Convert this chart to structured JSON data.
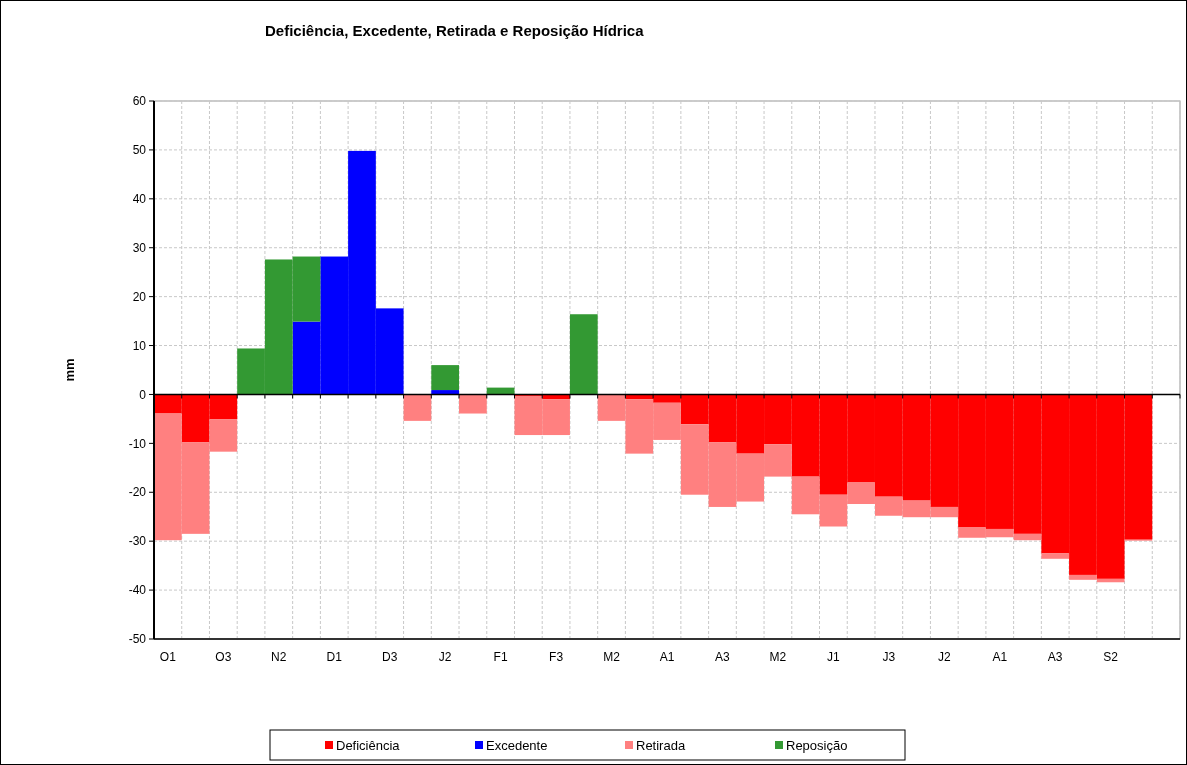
{
  "chart_data": {
    "type": "bar",
    "title": "Deficiência, Excedente, Retirada e Reposição Hídrica",
    "ylabel": "mm",
    "categories": [
      "O1",
      null,
      "O3",
      null,
      "N2",
      null,
      "D1",
      null,
      "D3",
      null,
      "J2",
      null,
      "F1",
      null,
      "F3",
      null,
      "M2",
      null,
      "A1",
      null,
      "A3",
      null,
      "M2",
      null,
      "J1",
      null,
      "J3",
      null,
      "J2",
      null,
      "A1",
      null,
      "A3",
      null,
      "S2",
      null,
      null
    ],
    "stacked": true,
    "series": [
      {
        "name": "Deficiência",
        "color": "#ff0000",
        "values": [
          -3.9,
          -9.8,
          -5.1,
          null,
          null,
          null,
          null,
          null,
          null,
          null,
          null,
          null,
          null,
          -0.3,
          -1.0,
          null,
          null,
          -1.0,
          -1.7,
          -6.1,
          -9.8,
          -12.1,
          -10.2,
          -16.8,
          -20.5,
          -18.0,
          -20.9,
          -21.7,
          -23.0,
          -27.2,
          -27.5,
          -28.5,
          -32.5,
          -36.9,
          -37.7,
          -29.7,
          null
        ]
      },
      {
        "name": "Excedente",
        "color": "#0000ff",
        "values": [
          null,
          null,
          null,
          null,
          null,
          14.9,
          28.2,
          49.8,
          17.6,
          null,
          0.9,
          null,
          null,
          null,
          null,
          null,
          null,
          null,
          null,
          null,
          null,
          null,
          null,
          null,
          null,
          null,
          null,
          null,
          null,
          null,
          null,
          null,
          null,
          null,
          null,
          null,
          null
        ]
      },
      {
        "name": "Retirada",
        "color": "#ff8080",
        "values": [
          -25.9,
          -18.7,
          -6.6,
          null,
          null,
          null,
          null,
          null,
          null,
          -5.4,
          null,
          -3.9,
          null,
          -8.0,
          -7.3,
          null,
          -5.4,
          -11.1,
          -7.6,
          -14.4,
          -13.2,
          -9.8,
          -6.6,
          -7.7,
          -6.5,
          -4.4,
          -3.9,
          -3.4,
          -2.1,
          -2.1,
          -1.7,
          -1.3,
          -1.1,
          -1.0,
          -0.7,
          -0.2,
          null
        ]
      },
      {
        "name": "Reposição",
        "color": "#339933",
        "values": [
          null,
          null,
          null,
          9.4,
          27.6,
          13.3,
          null,
          null,
          null,
          null,
          5.1,
          null,
          1.4,
          null,
          null,
          16.4,
          null,
          null,
          null,
          null,
          null,
          null,
          null,
          null,
          null,
          null,
          null,
          null,
          null,
          null,
          null,
          null,
          null,
          null,
          null,
          null,
          null
        ]
      }
    ],
    "ylim": [
      -50,
      60
    ],
    "yticks": [
      -50,
      -40,
      -30,
      -20,
      -10,
      0,
      10,
      20,
      30,
      40,
      50,
      60
    ],
    "grid": true,
    "legend": "bottom"
  }
}
